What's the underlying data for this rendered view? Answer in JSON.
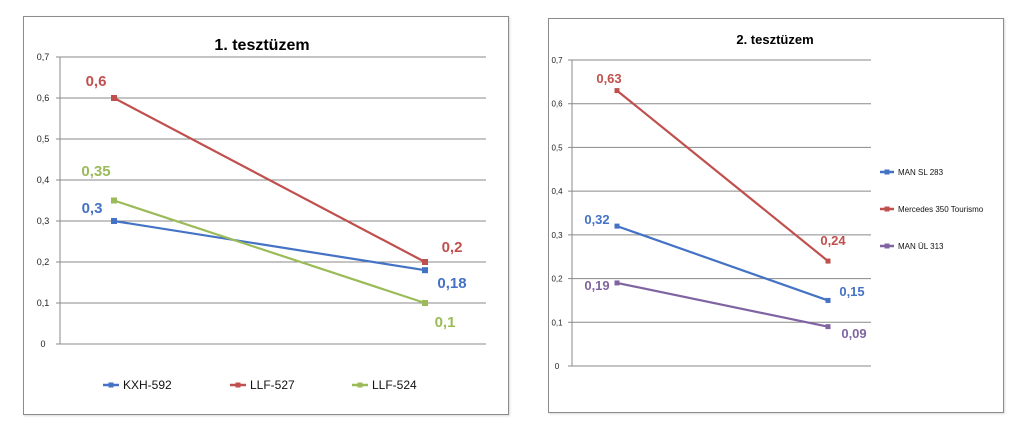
{
  "chart_data": [
    {
      "type": "line",
      "title": "1. tesztüzem",
      "ylim": [
        0,
        0.7
      ],
      "yticks": [
        "0",
        "0,1",
        "0,2",
        "0,3",
        "0,4",
        "0,5",
        "0,6",
        "0,7"
      ],
      "grid": true,
      "legend_position": "bottom",
      "series": [
        {
          "name": "KXH-592",
          "color": "#4472C4",
          "values": [
            0.3,
            0.18
          ],
          "labels": [
            "0,3",
            "0,18"
          ]
        },
        {
          "name": "LLF-527",
          "color": "#C0504D",
          "values": [
            0.6,
            0.2
          ],
          "labels": [
            "0,6",
            "0,2"
          ]
        },
        {
          "name": "LLF-524",
          "color": "#9BBB59",
          "values": [
            0.35,
            0.1
          ],
          "labels": [
            "0,35",
            "0,1"
          ]
        }
      ]
    },
    {
      "type": "line",
      "title": "2. tesztüzem",
      "ylim": [
        0,
        0.7
      ],
      "yticks": [
        "0",
        "0,1",
        "0,2",
        "0,3",
        "0,4",
        "0,5",
        "0,6",
        "0,7"
      ],
      "grid": true,
      "legend_position": "right",
      "series": [
        {
          "name": "MAN SL 283",
          "color": "#4472C4",
          "values": [
            0.32,
            0.15
          ],
          "labels": [
            "0,32",
            "0,15"
          ]
        },
        {
          "name": "Mercedes 350 Tourismo",
          "color": "#C0504D",
          "values": [
            0.63,
            0.24
          ],
          "labels": [
            "0,63",
            "0,24"
          ]
        },
        {
          "name": "MAN ÜL 313",
          "color": "#8064A2",
          "values": [
            0.19,
            0.09
          ],
          "labels": [
            "0,19",
            "0,09"
          ]
        }
      ]
    }
  ]
}
